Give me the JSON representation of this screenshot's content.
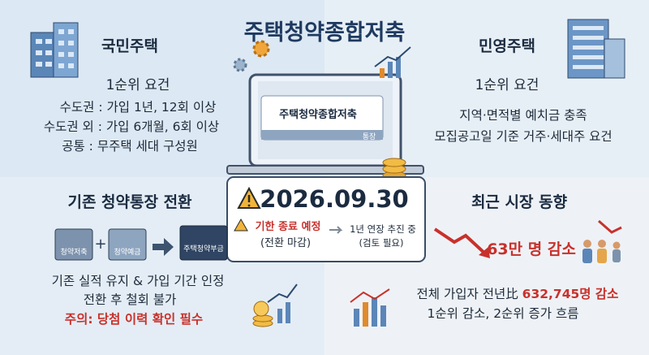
{
  "title": "주택청약종합저축",
  "national_housing": {
    "heading": "국민주택",
    "subheading": "1순위 요건",
    "lines": [
      "수도권 : 가입 1년, 12회 이상",
      "수도권 외 : 가입 6개월, 6회 이상",
      "공통 : 무주택 세대 구성원"
    ]
  },
  "private_housing": {
    "heading": "민영주택",
    "subheading": "1순위 요건",
    "lines": [
      "지역·면적별 예치금 충족",
      "모집공고일 기준 거주·세대주 요건"
    ]
  },
  "account_card": {
    "label": "주택청약종합저축",
    "tag": "통장"
  },
  "deadline": {
    "date": "2026.09.30",
    "status": "기한 종료 예정",
    "status_note": "(전환 마감)",
    "extension": "1년 연장 추진 중",
    "extension_note": "(검토 필요)"
  },
  "conversion": {
    "heading": "기존 청약통장 전환",
    "cards": [
      "청약저축",
      "청약예금",
      "주택청약부금"
    ],
    "lines": [
      "기존 실적 유지 & 가입 기간 인정",
      "전환 후 철회 불가"
    ],
    "warning": "주의: 당첨 이력 확인 필수"
  },
  "market": {
    "heading": "최근 시장 동향",
    "highlight": "63만 명 감소",
    "detail_prefix": "전체 가입자 전년比",
    "detail_figure": "632,745명 감소",
    "trend": "1순위 감소, 2순위 증가 흐름"
  }
}
